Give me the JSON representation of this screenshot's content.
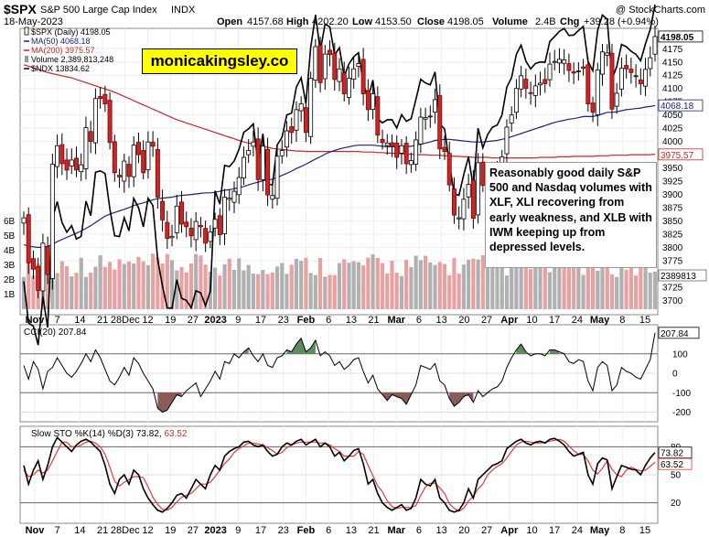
{
  "header": {
    "symbol": "$SPX",
    "name": "S&P 500 Large Cap Index",
    "exchange": "INDX",
    "date": "18-May-2023",
    "open_label": "Open",
    "open": "4157.68",
    "high_label": "High",
    "high": "4202.20",
    "low_label": "Low",
    "low": "4153.50",
    "close_label": "Close",
    "close": "4198.05",
    "volume_label": "Volume",
    "volume": "2.4B",
    "chg_label": "Chg",
    "chg": "+39.28 (+0.94%)",
    "chg_color": "#00aa00",
    "credit": "@ StockCharts.com"
  },
  "watermark": "monicakingsley.co",
  "annotation": "Reasonably good daily S&P 500 and Nasdaq volumes with XLF, XLI recovering from early weakness, and XLB with IWM keeping up from depressed levels.",
  "legend": [
    {
      "text": "$SPX (Daily) 4198.05",
      "color": "#000000",
      "marker": "candle"
    },
    {
      "text": "MA(50) 4068.18",
      "color": "#1a237e",
      "marker": "line"
    },
    {
      "text": "MA(200) 3975.57",
      "color": "#c62828",
      "marker": "line"
    },
    {
      "text": "Volume 2,389,813,248",
      "color": "#000000",
      "marker": "bar"
    },
    {
      "text": "$NDX 13834.62",
      "color": "#000000",
      "marker": "line"
    }
  ],
  "chart_data": [
    {
      "type": "candlestick",
      "title": "$SPX (Daily)",
      "y_ticks": [
        3700,
        3725,
        3750,
        3775,
        3800,
        3825,
        3850,
        3875,
        3900,
        3925,
        3950,
        3975,
        4000,
        4025,
        4050,
        4075,
        4100,
        4125,
        4150,
        4175
      ],
      "ylim": [
        3680,
        4210
      ],
      "volume_ticks": [
        "1B",
        "2B",
        "3B",
        "4B",
        "5B",
        "6B"
      ],
      "price_tags": {
        "close": "4198.05",
        "ma50": "4068.18",
        "ma200": "3975.57",
        "volume": "2389813"
      },
      "x_ticks": [
        "Nov",
        "7",
        "14",
        "21",
        "28Dec",
        "12",
        "19",
        "27",
        "2023",
        "9",
        "17",
        "23",
        "Feb",
        "6",
        "13",
        "21",
        "Mar",
        "6",
        "13",
        "20",
        "27",
        "Apr",
        "10",
        "17",
        "24",
        "May",
        "8",
        "15"
      ],
      "x_tick_bold": [
        "Nov",
        "Dec",
        "2023",
        "Feb",
        "Mar",
        "Apr",
        "May"
      ],
      "ohlc_closes": [
        3856,
        3771,
        3759,
        3719,
        3808,
        3749,
        3957,
        3992,
        3958,
        3946,
        3965,
        3946,
        3956,
        4026,
        4000,
        4081,
        4081,
        4071,
        3998,
        3941,
        3933,
        3963,
        3934,
        3993,
        3975,
        3941,
        3999,
        3991,
        3895,
        3852,
        3817,
        3821,
        3878,
        3844,
        3839,
        3822,
        3849,
        3839,
        3808,
        3829,
        3853,
        3824,
        3895,
        3893,
        3906,
        3932,
        3970,
        3983,
        3999,
        3928,
        3991,
        3899,
        3898,
        3972,
        3983,
        4020,
        4017,
        4060,
        4071,
        4017,
        4119,
        4179,
        4111,
        4165,
        4164,
        4117,
        4137,
        4090,
        4119,
        4137,
        4147,
        4090,
        4060,
        4090,
        4012,
        3998,
        3997,
        3991,
        3970,
        3992,
        3958,
        3964,
        4003,
        4046,
        4045,
        4048,
        4079,
        3986,
        3981,
        3918,
        3861,
        3856,
        3891,
        3919,
        3855,
        3960,
        3917,
        3937,
        3948,
        3951,
        3971,
        4027,
        4050,
        4100,
        4124,
        4100,
        4091,
        4105,
        4110,
        4109,
        4146,
        4151,
        4155,
        4154,
        4134,
        4129,
        4133,
        4138,
        4071,
        4055,
        4135,
        4169,
        4167,
        4061,
        4091,
        4138,
        4137,
        4130,
        4124,
        4109,
        4136,
        4158,
        4198
      ],
      "ma50": [
        3805,
        3803,
        3801,
        3800,
        3801,
        3802,
        3806,
        3811,
        3815,
        3819,
        3823,
        3827,
        3831,
        3836,
        3841,
        3847,
        3853,
        3859,
        3863,
        3866,
        3869,
        3872,
        3875,
        3879,
        3882,
        3884,
        3887,
        3890,
        3892,
        3893,
        3894,
        3895,
        3897,
        3898,
        3899,
        3900,
        3901,
        3902,
        3903,
        3903,
        3904,
        3906,
        3908,
        3909,
        3911,
        3913,
        3915,
        3918,
        3921,
        3923,
        3926,
        3927,
        3929,
        3932,
        3936,
        3940,
        3944,
        3949,
        3953,
        3957,
        3962,
        3967,
        3971,
        3976,
        3980,
        3983,
        3986,
        3988,
        3990,
        3992,
        3993,
        3993,
        3993,
        3993,
        3992,
        3991,
        3990,
        3990,
        3990,
        3990,
        3990,
        3991,
        3993,
        3995,
        3997,
        3999,
        4002,
        4003,
        4004,
        4004,
        4003,
        4002,
        4001,
        4000,
        3999,
        3999,
        3999,
        4000,
        4001,
        4002,
        4004,
        4006,
        4009,
        4012,
        4015,
        4018,
        4021,
        4024,
        4027,
        4030,
        4033,
        4036,
        4038,
        4040,
        4042,
        4043,
        4045,
        4047,
        4047,
        4047,
        4049,
        4052,
        4055,
        4055,
        4056,
        4058,
        4060,
        4061,
        4062,
        4063,
        4065,
        4066,
        4068
      ],
      "ma200": [
        4145,
        4142,
        4139,
        4136,
        4133,
        4130,
        4128,
        4126,
        4124,
        4122,
        4120,
        4117,
        4114,
        4111,
        4108,
        4105,
        4102,
        4099,
        4096,
        4093,
        4089,
        4085,
        4081,
        4077,
        4073,
        4069,
        4065,
        4061,
        4057,
        4053,
        4049,
        4045,
        4041,
        4038,
        4035,
        4032,
        4029,
        4026,
        4023,
        4020,
        4017,
        4014,
        4011,
        4008,
        4005,
        4002,
        3999,
        3997,
        3995,
        3993,
        3991,
        3989,
        3987,
        3986,
        3985,
        3984,
        3983,
        3982,
        3982,
        3981,
        3981,
        3981,
        3981,
        3981,
        3981,
        3981,
        3981,
        3981,
        3981,
        3981,
        3981,
        3980,
        3980,
        3980,
        3979,
        3979,
        3978,
        3978,
        3977,
        3977,
        3976,
        3976,
        3975,
        3975,
        3975,
        3974,
        3974,
        3974,
        3973,
        3973,
        3972,
        3972,
        3971,
        3971,
        3970,
        3970,
        3970,
        3970,
        3969,
        3969,
        3969,
        3969,
        3969,
        3969,
        3969,
        3969,
        3969,
        3969,
        3970,
        3970,
        3970,
        3970,
        3971,
        3971,
        3971,
        3972,
        3972,
        3972,
        3972,
        3972,
        3973,
        3973,
        3973,
        3974,
        3974,
        3974,
        3974,
        3975,
        3975,
        3975,
        3975,
        3975,
        3976
      ],
      "ndx_note": "NDX overlay plotted on a secondary scale; latest 13834.62"
    },
    {
      "type": "line",
      "title": "CCI(20)",
      "last_value": "207.84",
      "y_ticks": [
        "100",
        "0",
        "-100",
        "-200"
      ],
      "ylim": [
        -240,
        240
      ],
      "values": [
        40,
        -30,
        60,
        20,
        -80,
        10,
        30,
        80,
        40,
        0,
        -20,
        10,
        50,
        100,
        60,
        120,
        80,
        20,
        -40,
        -60,
        -20,
        30,
        -10,
        80,
        50,
        0,
        -40,
        -80,
        -180,
        -200,
        -190,
        -150,
        -110,
        -120,
        -90,
        -70,
        -50,
        -120,
        -80,
        -40,
        10,
        -30,
        60,
        50,
        100,
        80,
        110,
        130,
        90,
        60,
        100,
        40,
        30,
        80,
        90,
        120,
        110,
        150,
        180,
        110,
        130,
        170,
        90,
        110,
        90,
        40,
        60,
        20,
        40,
        70,
        80,
        10,
        -50,
        -10,
        -80,
        -110,
        -140,
        -110,
        -120,
        -130,
        -160,
        -110,
        -60,
        40,
        30,
        20,
        50,
        -40,
        -60,
        -130,
        -170,
        -150,
        -120,
        -110,
        -150,
        -90,
        -120,
        -100,
        -80,
        -70,
        -40,
        30,
        80,
        120,
        150,
        110,
        90,
        100,
        100,
        90,
        120,
        120,
        110,
        100,
        60,
        50,
        70,
        60,
        -40,
        -90,
        30,
        60,
        40,
        -90,
        -60,
        30,
        10,
        0,
        -20,
        -30,
        20,
        70,
        207.84
      ],
      "thresholds": [
        100,
        -100
      ]
    },
    {
      "type": "line",
      "title": "Slow STO %K(14) %D(3)",
      "k_label": "73.82",
      "d_label": "63.52",
      "y_ticks": [
        "80",
        "50",
        "20"
      ],
      "ylim": [
        0,
        100
      ],
      "k_values": [
        60,
        40,
        55,
        65,
        45,
        60,
        80,
        90,
        85,
        80,
        75,
        82,
        86,
        88,
        85,
        80,
        75,
        60,
        40,
        30,
        45,
        50,
        40,
        55,
        50,
        35,
        25,
        18,
        12,
        10,
        14,
        20,
        28,
        30,
        25,
        35,
        45,
        40,
        35,
        50,
        60,
        55,
        70,
        75,
        78,
        80,
        85,
        86,
        82,
        80,
        82,
        75,
        70,
        72,
        80,
        84,
        82,
        86,
        88,
        82,
        85,
        88,
        80,
        84,
        80,
        70,
        74,
        65,
        70,
        76,
        78,
        62,
        40,
        45,
        30,
        20,
        15,
        12,
        15,
        18,
        12,
        14,
        25,
        45,
        40,
        38,
        45,
        25,
        20,
        12,
        10,
        12,
        20,
        35,
        25,
        45,
        50,
        55,
        60,
        62,
        65,
        78,
        82,
        86,
        88,
        84,
        82,
        85,
        86,
        84,
        88,
        89,
        86,
        82,
        75,
        70,
        72,
        74,
        50,
        40,
        62,
        68,
        66,
        35,
        48,
        60,
        58,
        56,
        55,
        50,
        60,
        68,
        73.82
      ],
      "d_values": [
        55,
        48,
        50,
        55,
        52,
        55,
        65,
        75,
        85,
        85,
        80,
        80,
        82,
        85,
        86,
        84,
        80,
        72,
        58,
        43,
        38,
        42,
        45,
        48,
        48,
        47,
        37,
        26,
        18,
        13,
        12,
        15,
        21,
        26,
        28,
        30,
        35,
        40,
        40,
        42,
        48,
        55,
        62,
        67,
        74,
        78,
        81,
        84,
        84,
        83,
        82,
        79,
        76,
        72,
        74,
        79,
        82,
        84,
        85,
        85,
        85,
        85,
        84,
        84,
        82,
        78,
        75,
        70,
        70,
        70,
        75,
        72,
        60,
        49,
        38,
        32,
        22,
        16,
        14,
        15,
        15,
        15,
        17,
        28,
        37,
        41,
        41,
        36,
        30,
        19,
        14,
        11,
        14,
        22,
        27,
        35,
        40,
        50,
        55,
        59,
        62,
        68,
        75,
        82,
        85,
        86,
        85,
        84,
        84,
        85,
        86,
        87,
        88,
        86,
        81,
        76,
        72,
        72,
        65,
        55,
        51,
        57,
        65,
        56,
        50,
        48,
        55,
        58,
        56,
        54,
        55,
        59,
        63.52
      ]
    }
  ]
}
